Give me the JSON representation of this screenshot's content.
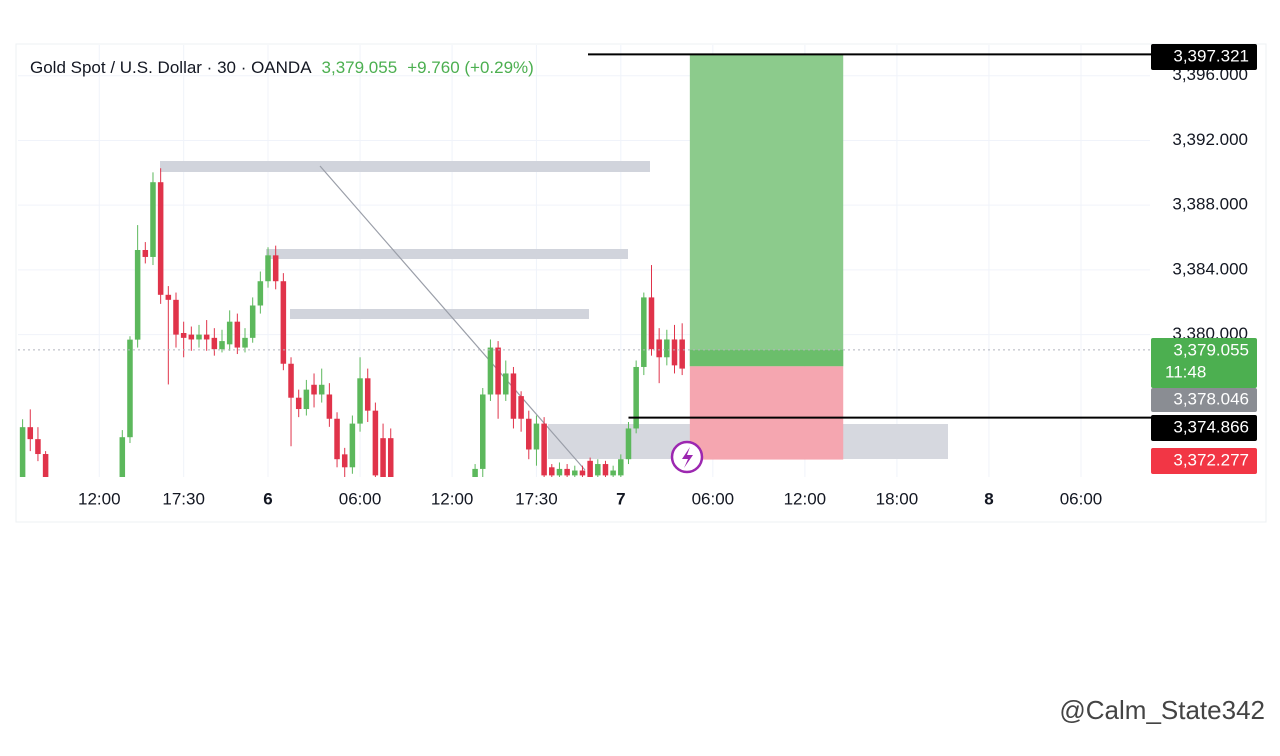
{
  "chart_data": {
    "type": "candlestick",
    "title": "Gold Spot / U.S. Dollar · 30 · OANDA",
    "change_label": "+9.760 (+0.29%)",
    "up_color": "#5cb85c",
    "down_color": "#e0334a",
    "grid": true,
    "xlim": [
      -16.3,
      57.5
    ],
    "ylim": [
      3371.2,
      3397.9
    ],
    "xticks": [
      {
        "value": -11,
        "label": "12:00"
      },
      {
        "value": -5.5,
        "label": "17:30"
      },
      {
        "value": 0,
        "label": "6"
      },
      {
        "value": 6,
        "label": "06:00"
      },
      {
        "value": 12,
        "label": "12:00"
      },
      {
        "value": 17.5,
        "label": "17:30"
      },
      {
        "value": 23,
        "label": "7"
      },
      {
        "value": 29,
        "label": "06:00"
      },
      {
        "value": 35,
        "label": "12:00"
      },
      {
        "value": 41,
        "label": "18:00"
      },
      {
        "value": 47,
        "label": "8"
      },
      {
        "value": 53,
        "label": "06:00"
      }
    ],
    "yticks": [
      {
        "value": 3380,
        "label": "3,380.000"
      },
      {
        "value": 3384,
        "label": "3,384.000"
      },
      {
        "value": 3388,
        "label": "3,388.000"
      },
      {
        "value": 3392,
        "label": "3,392.000"
      },
      {
        "value": 3396,
        "label": "3,396.000"
      }
    ],
    "x": [
      -16,
      -15.5,
      -15,
      -14.5,
      -9.5,
      -9,
      -8.5,
      -8,
      -7.5,
      -7,
      -6.5,
      -6,
      -5.5,
      -5,
      -4.5,
      -4,
      -3.5,
      -3,
      -2.5,
      -2,
      -1.5,
      -1,
      -0.5,
      0,
      0.5,
      1,
      1.5,
      2,
      2.5,
      3,
      3.5,
      4,
      4.5,
      5,
      5.5,
      6,
      6.5,
      7,
      7.5,
      8,
      13.5,
      14,
      14.5,
      15,
      15.5,
      16,
      16.5,
      17,
      17.5,
      18,
      18.5,
      19,
      19.5,
      20,
      20.5,
      21,
      21.5,
      22,
      22.5,
      23,
      23.5,
      24,
      24.5,
      25,
      25.5,
      26,
      26.5,
      27
    ],
    "open": [
      3370.6,
      3374.28,
      3373.54,
      3372.62,
      3370.9,
      3373.66,
      3379.69,
      3385.23,
      3384.8,
      3389.42,
      3382.46,
      3382.15,
      3380.1,
      3380.0,
      3379.7,
      3380.0,
      3379.8,
      3379.1,
      3379.4,
      3380.8,
      3379.2,
      3379.8,
      3381.8,
      3383.3,
      3384.9,
      3383.3,
      3378.2,
      3376.1,
      3375.4,
      3376.9,
      3376.3,
      3376.3,
      3374.8,
      3372.6,
      3371.8,
      3374.5,
      3377.3,
      3375.3,
      3373.6,
      3373.6,
      3371.0,
      3371.7,
      3376.3,
      3379.2,
      3376.3,
      3377.6,
      3376.2,
      3374.8,
      3372.9,
      3374.5,
      3371.8,
      3371.3,
      3371.7,
      3371.3,
      3371.6,
      3372.2,
      3371.3,
      3372.0,
      3371.3,
      3371.3,
      3372.3,
      3374.2,
      3378.0,
      3382.3,
      3379.7,
      3378.6,
      3379.7,
      3379.7
    ],
    "high": [
      3374.77,
      3375.38,
      3374.28,
      3372.8,
      3374.1,
      3379.9,
      3386.77,
      3385.72,
      3390.03,
      3390.28,
      3383.0,
      3382.6,
      3380.8,
      3380.5,
      3380.6,
      3380.9,
      3380.4,
      3380.3,
      3381.5,
      3381.3,
      3380.4,
      3382.3,
      3383.9,
      3385.4,
      3385.5,
      3383.8,
      3378.6,
      3376.6,
      3377.2,
      3377.6,
      3377.9,
      3377.0,
      3375.2,
      3373.0,
      3375.0,
      3378.6,
      3377.9,
      3375.8,
      3374.5,
      3374.2,
      3372.0,
      3376.7,
      3379.7,
      3379.6,
      3378.4,
      3378.0,
      3376.5,
      3375.3,
      3375.0,
      3374.9,
      3372.0,
      3372.1,
      3372.0,
      3371.9,
      3371.9,
      3372.4,
      3372.3,
      3372.2,
      3371.9,
      3372.6,
      3374.6,
      3378.4,
      3382.6,
      3384.3,
      3380.4,
      3380.3,
      3380.6,
      3380.7
    ],
    "low": [
      3370.2,
      3372.8,
      3372.18,
      3370.5,
      3370.5,
      3373.3,
      3379.2,
      3384.4,
      3384.3,
      3381.9,
      3376.92,
      3379.2,
      3378.6,
      3379.0,
      3379.2,
      3379.0,
      3378.7,
      3378.9,
      3379.0,
      3378.8,
      3378.9,
      3379.5,
      3381.3,
      3382.9,
      3382.8,
      3377.8,
      3373.1,
      3374.9,
      3375.0,
      3375.5,
      3375.8,
      3374.3,
      3371.8,
      3370.9,
      3371.4,
      3374.0,
      3374.6,
      3370.6,
      3370.4,
      3370.3,
      3370.6,
      3371.2,
      3375.9,
      3374.8,
      3375.9,
      3374.2,
      3374.0,
      3372.3,
      3371.9,
      3370.9,
      3370.8,
      3371.0,
      3371.0,
      3371.0,
      3371.0,
      3370.9,
      3371.0,
      3371.0,
      3371.0,
      3371.0,
      3372.0,
      3373.9,
      3377.5,
      3378.7,
      3377.0,
      3378.1,
      3377.6,
      3377.5
    ],
    "close": [
      3374.28,
      3373.54,
      3372.62,
      3370.9,
      3373.66,
      3379.69,
      3385.23,
      3384.8,
      3389.42,
      3382.46,
      3382.15,
      3380.0,
      3379.8,
      3379.7,
      3380.0,
      3379.7,
      3379.1,
      3379.6,
      3380.8,
      3379.2,
      3379.8,
      3381.8,
      3383.3,
      3384.9,
      3383.3,
      3378.2,
      3376.1,
      3375.4,
      3376.6,
      3376.3,
      3376.9,
      3374.8,
      3372.3,
      3371.8,
      3374.5,
      3377.3,
      3375.3,
      3371.3,
      3370.9,
      3370.9,
      3371.7,
      3376.3,
      3379.2,
      3376.3,
      3377.6,
      3374.8,
      3374.8,
      3372.9,
      3374.5,
      3371.3,
      3371.3,
      3371.7,
      3371.3,
      3371.6,
      3371.3,
      3371.2,
      3372.0,
      3371.3,
      3371.6,
      3372.3,
      3374.2,
      3378.0,
      3382.3,
      3379.1,
      3378.6,
      3379.7,
      3378.1,
      3377.9
    ],
    "current_price": {
      "value": 3379.055,
      "label": "3,379.055",
      "color": "#4caf50"
    },
    "countdown": "11:48",
    "position": {
      "x_start": 27.5,
      "x_end": 37.5,
      "target": {
        "value": 3397.321,
        "label": "3,397.321"
      },
      "entry": {
        "value": 3378.046,
        "label": "3,378.046"
      },
      "stop": {
        "value": 3372.277,
        "label": "3,372.277"
      }
    },
    "level": {
      "value": 3374.866,
      "label": "3,374.866",
      "x_start": 23.5
    },
    "watermark": "@Calm_State342"
  }
}
